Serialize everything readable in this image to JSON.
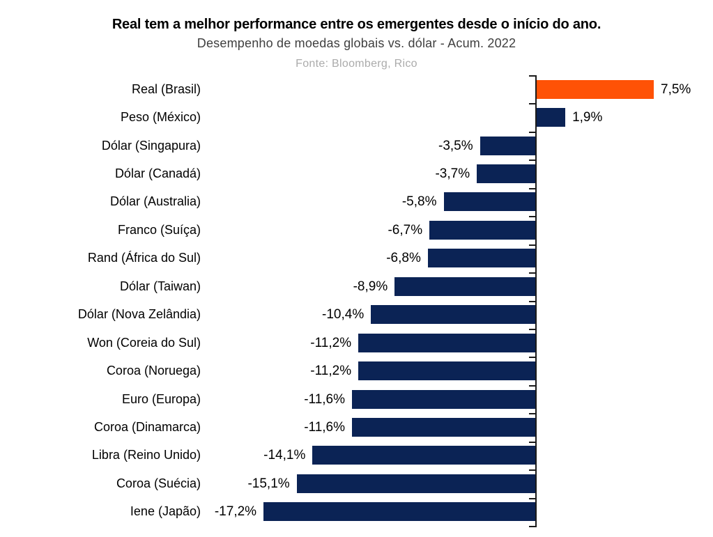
{
  "header": {
    "title": "Real tem a melhor performance entre os emergentes desde o início do ano.",
    "subtitle": "Desempenho de moedas globais vs. dólar - Acum. 2022",
    "source": "Fonte: Bloomberg, Rico"
  },
  "chart_data": {
    "type": "bar",
    "orientation": "horizontal",
    "title": "Real tem a melhor performance entre os emergentes desde o início do ano.",
    "subtitle": "Desempenho de moedas globais vs. dólar - Acum. 2022",
    "source": "Fonte: Bloomberg, Rico",
    "categories": [
      "Real (Brasil)",
      "Peso (México)",
      "Dólar (Singapura)",
      "Dólar (Canadá)",
      "Dólar (Australia)",
      "Franco (Suíça)",
      "Rand (África do Sul)",
      "Dólar (Taiwan)",
      "Dólar (Nova Zelândia)",
      "Won (Coreia do Sul)",
      "Coroa (Noruega)",
      "Euro (Europa)",
      "Coroa (Dinamarca)",
      "Libra (Reino Unido)",
      "Coroa (Suécia)",
      "Iene (Japão)"
    ],
    "values": [
      7.5,
      1.9,
      -3.5,
      -3.7,
      -5.8,
      -6.7,
      -6.8,
      -8.9,
      -10.4,
      -11.2,
      -11.2,
      -11.6,
      -11.6,
      -14.1,
      -15.1,
      -17.2
    ],
    "value_labels": [
      "7,5%",
      "1,9%",
      "-3,5%",
      "-3,7%",
      "-5,8%",
      "-6,7%",
      "-6,8%",
      "-8,9%",
      "-10,4%",
      "-11,2%",
      "-11,2%",
      "-11,6%",
      "-11,6%",
      "-14,1%",
      "-15,1%",
      "-17,2%"
    ],
    "xlim": [
      -17.2,
      7.5
    ],
    "grid": false,
    "legend": "none",
    "highlight_index": 0,
    "colors": {
      "highlight_bar": "#ff5206",
      "default_bar": "#0b2355",
      "axis": "#1a1a1a",
      "title_text": "#000000",
      "subtitle_text": "#3f3f3f",
      "source_text": "#ababab",
      "label_text": "#000000",
      "background": "#ffffff"
    }
  }
}
